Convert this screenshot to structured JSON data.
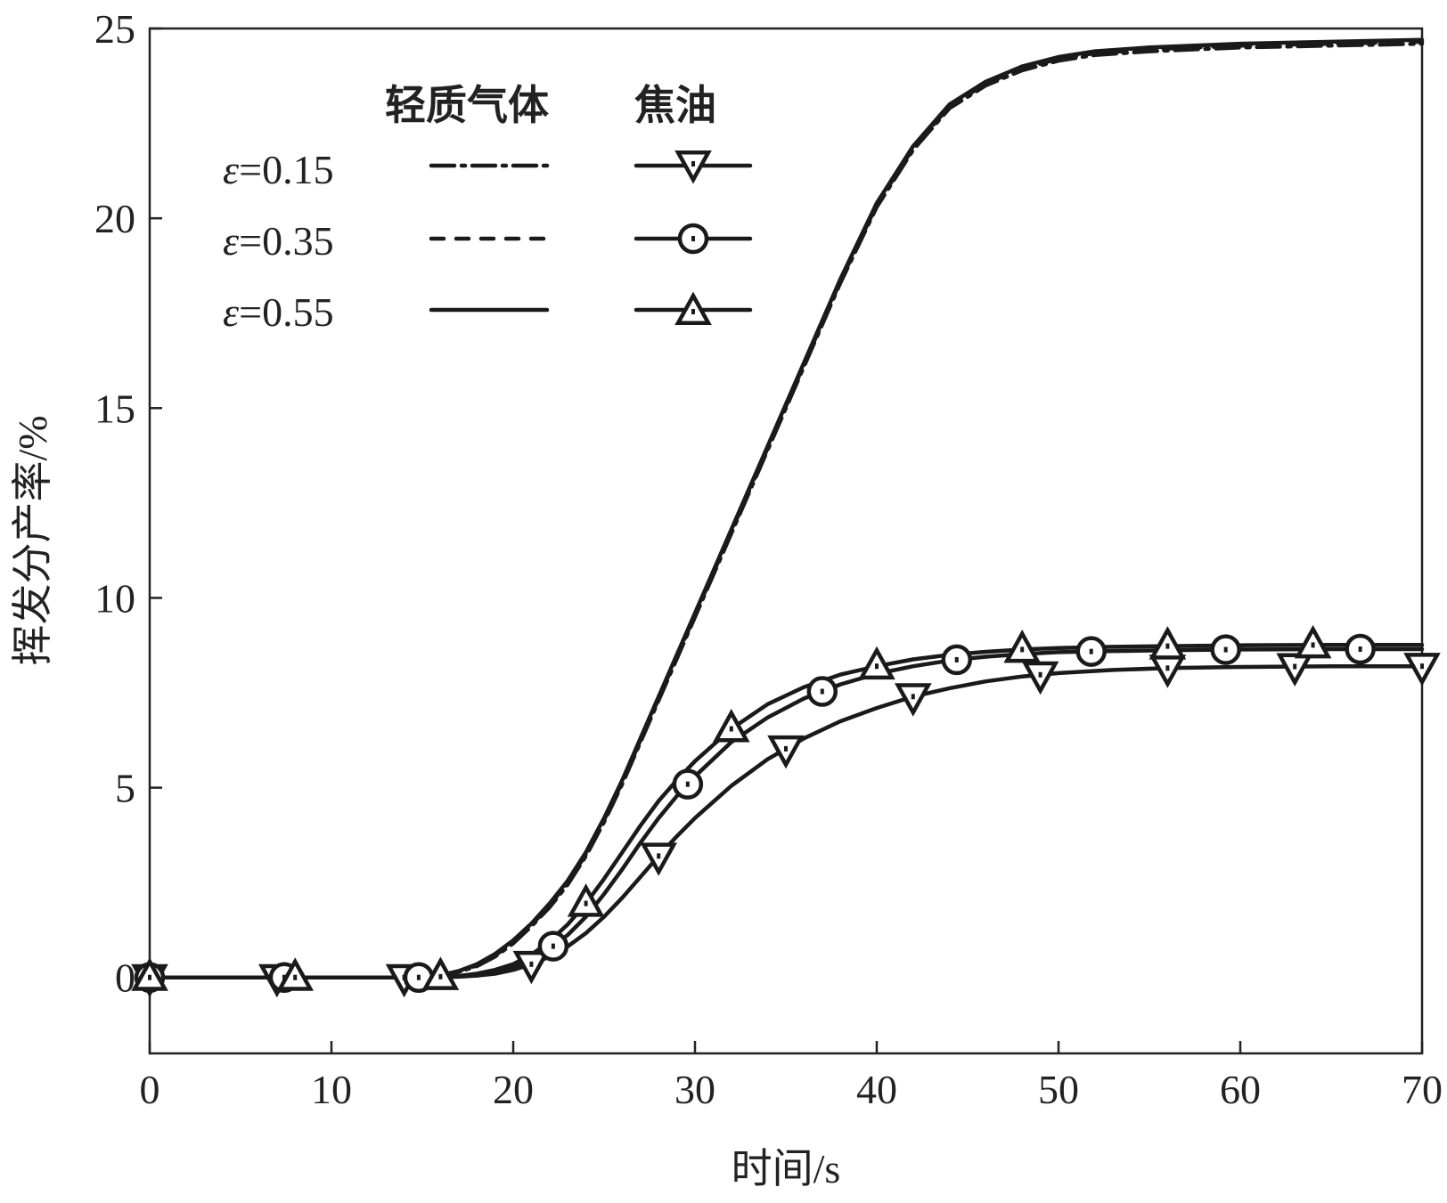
{
  "chart_data": {
    "type": "line",
    "xlabel": "时间/s",
    "ylabel": "挥发分产率/%",
    "xlim": [
      0,
      70
    ],
    "ylim": [
      -2,
      25
    ],
    "xticks": [
      0,
      10,
      20,
      30,
      40,
      50,
      60,
      70
    ],
    "yticks": [
      0,
      5,
      10,
      15,
      20,
      25
    ],
    "grid": false,
    "legend": {
      "placement": "top-left",
      "group_headers": [
        "轻质气体",
        "焦油"
      ],
      "rows": [
        {
          "label_prefix": "ε",
          "label_value": "=0.15"
        },
        {
          "label_prefix": "ε",
          "label_value": "=0.35"
        },
        {
          "label_prefix": "ε",
          "label_value": "=0.55"
        }
      ]
    },
    "series": [
      {
        "name": "轻质气体 ε=0.15",
        "group": "light-gas",
        "style": "dash-dot",
        "x": [
          0,
          10,
          15,
          16,
          17,
          18,
          19,
          20,
          21,
          22,
          23,
          24,
          25,
          26,
          27,
          28,
          29,
          30,
          32,
          34,
          36,
          38,
          40,
          42,
          44,
          46,
          48,
          50,
          52,
          55,
          60,
          65,
          70
        ],
        "y": [
          0,
          0,
          0,
          0.05,
          0.15,
          0.3,
          0.55,
          0.9,
          1.35,
          1.85,
          2.45,
          3.2,
          4.1,
          5.1,
          6.2,
          7.3,
          8.4,
          9.5,
          11.7,
          13.9,
          16.1,
          18.3,
          20.3,
          21.8,
          22.9,
          23.5,
          23.9,
          24.15,
          24.3,
          24.4,
          24.5,
          24.55,
          24.6
        ]
      },
      {
        "name": "轻质气体 ε=0.35",
        "group": "light-gas",
        "style": "dashed",
        "x": [
          0,
          10,
          15,
          16,
          17,
          18,
          19,
          20,
          21,
          22,
          23,
          24,
          25,
          26,
          27,
          28,
          29,
          30,
          32,
          34,
          36,
          38,
          40,
          42,
          44,
          46,
          48,
          50,
          52,
          55,
          60,
          65,
          70
        ],
        "y": [
          0,
          0,
          0,
          0.05,
          0.15,
          0.32,
          0.58,
          0.93,
          1.38,
          1.9,
          2.5,
          3.25,
          4.15,
          5.15,
          6.25,
          7.35,
          8.45,
          9.55,
          11.75,
          13.95,
          16.15,
          18.35,
          20.35,
          21.85,
          22.95,
          23.55,
          23.95,
          24.2,
          24.35,
          24.45,
          24.55,
          24.6,
          24.65
        ]
      },
      {
        "name": "轻质气体 ε=0.55",
        "group": "light-gas",
        "style": "solid",
        "x": [
          0,
          10,
          15,
          16,
          17,
          18,
          19,
          20,
          21,
          22,
          23,
          24,
          25,
          26,
          27,
          28,
          29,
          30,
          32,
          34,
          36,
          38,
          40,
          42,
          44,
          46,
          48,
          50,
          52,
          55,
          60,
          65,
          70
        ],
        "y": [
          0,
          0,
          0,
          0.06,
          0.17,
          0.35,
          0.62,
          0.98,
          1.42,
          1.95,
          2.55,
          3.3,
          4.2,
          5.2,
          6.3,
          7.4,
          8.5,
          9.6,
          11.8,
          14.0,
          16.2,
          18.4,
          20.4,
          21.9,
          23.0,
          23.6,
          24.0,
          24.25,
          24.4,
          24.5,
          24.6,
          24.65,
          24.7
        ]
      },
      {
        "name": "焦油 ε=0.15",
        "group": "tar",
        "marker": "triangle-down",
        "x": [
          0,
          10,
          15,
          17,
          18,
          19,
          20,
          21,
          22,
          23,
          24,
          25,
          26,
          27,
          28,
          29,
          30,
          32,
          34,
          36,
          38,
          40,
          42,
          44,
          46,
          48,
          50,
          53,
          56,
          60,
          65,
          70
        ],
        "y": [
          0,
          0,
          0,
          0.02,
          0.05,
          0.1,
          0.2,
          0.35,
          0.55,
          0.82,
          1.17,
          1.6,
          2.1,
          2.65,
          3.2,
          3.72,
          4.2,
          5.05,
          5.75,
          6.3,
          6.75,
          7.1,
          7.4,
          7.62,
          7.8,
          7.93,
          8.02,
          8.1,
          8.15,
          8.18,
          8.2,
          8.2
        ],
        "marker_x": [
          0,
          7,
          14,
          21,
          28,
          35,
          42,
          49,
          56,
          63,
          70
        ]
      },
      {
        "name": "焦油 ε=0.35",
        "group": "tar",
        "marker": "circle",
        "x": [
          0,
          10,
          15,
          17,
          18,
          19,
          20,
          21,
          22,
          23,
          24,
          25,
          26,
          27,
          28,
          29,
          30,
          32,
          34,
          36,
          38,
          40,
          42,
          44,
          46,
          48,
          50,
          53,
          56,
          60,
          65,
          70
        ],
        "y": [
          0,
          0,
          0,
          0.03,
          0.07,
          0.14,
          0.27,
          0.47,
          0.75,
          1.12,
          1.6,
          2.2,
          2.85,
          3.55,
          4.2,
          4.78,
          5.3,
          6.2,
          6.85,
          7.35,
          7.72,
          8.0,
          8.2,
          8.35,
          8.45,
          8.52,
          8.57,
          8.6,
          8.62,
          8.64,
          8.65,
          8.65
        ],
        "marker_x": [
          0,
          7.4,
          14.8,
          22.2,
          29.6,
          37,
          44.4,
          51.8,
          59.2,
          66.6
        ]
      },
      {
        "name": "焦油 ε=0.55",
        "group": "tar",
        "marker": "triangle-up",
        "x": [
          0,
          10,
          15,
          17,
          18,
          19,
          20,
          21,
          22,
          23,
          24,
          25,
          26,
          27,
          28,
          29,
          30,
          32,
          34,
          36,
          38,
          40,
          42,
          44,
          46,
          48,
          50,
          53,
          56,
          60,
          65,
          70
        ],
        "y": [
          0,
          0,
          0,
          0.04,
          0.1,
          0.2,
          0.35,
          0.6,
          0.95,
          1.4,
          1.95,
          2.6,
          3.3,
          4.0,
          4.65,
          5.2,
          5.7,
          6.55,
          7.2,
          7.65,
          7.98,
          8.2,
          8.38,
          8.5,
          8.58,
          8.64,
          8.68,
          8.71,
          8.73,
          8.75,
          8.76,
          8.76
        ],
        "marker_x": [
          0,
          8,
          16,
          24,
          32,
          40,
          48,
          56,
          64
        ]
      }
    ]
  }
}
